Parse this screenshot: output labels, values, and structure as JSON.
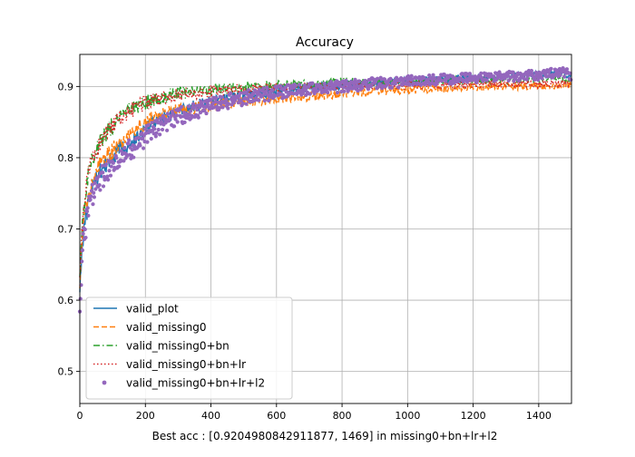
{
  "chart_data": {
    "type": "line",
    "title": "Accuracy",
    "xlabel": "Best acc : [0.9204980842911877, 1469] in missing0+bn+lr+l2",
    "ylabel": "",
    "xlim": [
      0,
      1500
    ],
    "ylim": [
      0.455,
      0.945
    ],
    "grid": true,
    "legend_position": "lower-left",
    "xticks": [
      0,
      200,
      400,
      600,
      800,
      1000,
      1200,
      1400
    ],
    "xtick_labels": [
      "0",
      "200",
      "400",
      "600",
      "800",
      "1000",
      "1200",
      "1400"
    ],
    "yticks": [
      0.5,
      0.6,
      0.7,
      0.8,
      0.9
    ],
    "ytick_labels": [
      "0.5",
      "0.6",
      "0.7",
      "0.8",
      "0.9"
    ],
    "series": [
      {
        "name": "valid_plot",
        "color": "#1f77b4",
        "style": "solid",
        "x": [
          0,
          10,
          20,
          30,
          40,
          60,
          80,
          100,
          120,
          150,
          180,
          200,
          250,
          300,
          350,
          400,
          450,
          500,
          550,
          600,
          650,
          700,
          750,
          800,
          900,
          1000,
          1100,
          1200,
          1300,
          1400,
          1469,
          1499
        ],
        "y": [
          0.62,
          0.69,
          0.72,
          0.745,
          0.76,
          0.78,
          0.79,
          0.8,
          0.81,
          0.82,
          0.83,
          0.84,
          0.855,
          0.865,
          0.872,
          0.878,
          0.883,
          0.887,
          0.89,
          0.893,
          0.896,
          0.898,
          0.9,
          0.902,
          0.905,
          0.908,
          0.91,
          0.912,
          0.914,
          0.916,
          0.918,
          0.915
        ]
      },
      {
        "name": "valid_missing0",
        "color": "#ff7f0e",
        "style": "dashed",
        "x": [
          0,
          10,
          20,
          30,
          40,
          60,
          80,
          100,
          120,
          150,
          180,
          200,
          250,
          300,
          350,
          400,
          450,
          500,
          550,
          600,
          650,
          700,
          750,
          800,
          900,
          1000,
          1100,
          1200,
          1300,
          1400,
          1499
        ],
        "y": [
          0.63,
          0.7,
          0.735,
          0.755,
          0.77,
          0.79,
          0.8,
          0.81,
          0.82,
          0.833,
          0.843,
          0.85,
          0.86,
          0.866,
          0.87,
          0.873,
          0.876,
          0.878,
          0.88,
          0.882,
          0.884,
          0.886,
          0.888,
          0.89,
          0.893,
          0.895,
          0.897,
          0.899,
          0.9,
          0.901,
          0.902
        ]
      },
      {
        "name": "valid_missing0+bn",
        "color": "#2ca02c",
        "style": "dashdot",
        "x": [
          0,
          10,
          20,
          30,
          40,
          60,
          80,
          100,
          120,
          150,
          180,
          200,
          250,
          300,
          350,
          400,
          450,
          500,
          550,
          600,
          650,
          700,
          750,
          800,
          900,
          1000,
          1100,
          1200,
          1300,
          1400,
          1499
        ],
        "y": [
          0.64,
          0.72,
          0.76,
          0.785,
          0.8,
          0.82,
          0.835,
          0.845,
          0.855,
          0.865,
          0.873,
          0.878,
          0.885,
          0.89,
          0.893,
          0.895,
          0.897,
          0.899,
          0.9,
          0.902,
          0.903,
          0.904,
          0.905,
          0.906,
          0.907,
          0.908,
          0.908,
          0.909,
          0.909,
          0.91,
          0.91
        ]
      },
      {
        "name": "valid_missing0+bn+lr",
        "color": "#d62728",
        "style": "dotted",
        "x": [
          0,
          10,
          20,
          30,
          40,
          60,
          80,
          100,
          120,
          150,
          180,
          200,
          250,
          300,
          350,
          400,
          450,
          500,
          550,
          600,
          650,
          700,
          750,
          800,
          900,
          1000,
          1100,
          1200,
          1300,
          1400,
          1499
        ],
        "y": [
          0.64,
          0.72,
          0.76,
          0.785,
          0.8,
          0.82,
          0.835,
          0.845,
          0.855,
          0.865,
          0.872,
          0.877,
          0.884,
          0.888,
          0.891,
          0.893,
          0.895,
          0.896,
          0.897,
          0.898,
          0.899,
          0.9,
          0.9,
          0.901,
          0.901,
          0.902,
          0.902,
          0.903,
          0.903,
          0.904,
          0.904
        ]
      },
      {
        "name": "valid_missing0+bn+lr+l2",
        "color": "#9467bd",
        "style": "markers",
        "x": [
          0,
          10,
          20,
          30,
          40,
          60,
          80,
          100,
          120,
          150,
          180,
          200,
          250,
          300,
          350,
          400,
          450,
          500,
          550,
          600,
          650,
          700,
          750,
          800,
          900,
          1000,
          1100,
          1200,
          1300,
          1400,
          1469,
          1499
        ],
        "y": [
          0.6,
          0.68,
          0.71,
          0.735,
          0.75,
          0.77,
          0.78,
          0.79,
          0.8,
          0.81,
          0.82,
          0.83,
          0.845,
          0.858,
          0.866,
          0.873,
          0.879,
          0.884,
          0.888,
          0.891,
          0.894,
          0.896,
          0.898,
          0.9,
          0.904,
          0.907,
          0.91,
          0.912,
          0.914,
          0.916,
          0.92,
          0.916
        ]
      }
    ]
  }
}
